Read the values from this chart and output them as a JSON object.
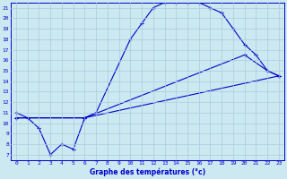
{
  "xlabel": "Graphe des températures (°c)",
  "bg_color": "#cce8f0",
  "grid_color": "#aaccdd",
  "line_color": "#0000cc",
  "xlim": [
    -0.5,
    23.5
  ],
  "ylim": [
    6.5,
    21.5
  ],
  "yticks": [
    7,
    8,
    9,
    10,
    11,
    12,
    13,
    14,
    15,
    16,
    17,
    18,
    19,
    20,
    21
  ],
  "xticks": [
    0,
    1,
    2,
    3,
    4,
    5,
    6,
    7,
    8,
    9,
    10,
    11,
    12,
    13,
    14,
    15,
    16,
    17,
    18,
    19,
    20,
    21,
    22,
    23
  ],
  "curve1_x": [
    0,
    1,
    2,
    3,
    4,
    5,
    6,
    7,
    10,
    11,
    12,
    13,
    14,
    15,
    16,
    17,
    18,
    19,
    20,
    21,
    22,
    23
  ],
  "curve1_y": [
    11,
    10.5,
    9.5,
    7,
    8,
    7.5,
    10.5,
    11,
    18,
    19.5,
    21,
    21.5,
    21.5,
    21.5,
    21.5,
    21,
    20.5,
    19,
    17.5,
    16.5,
    15,
    14.5
  ],
  "curve2_x": [
    0,
    6,
    23
  ],
  "curve2_y": [
    10.5,
    10.5,
    14.5
  ],
  "curve3_x": [
    0,
    6,
    20,
    22,
    23
  ],
  "curve3_y": [
    10.5,
    10.5,
    16.5,
    15,
    14.5
  ],
  "marker": "+"
}
